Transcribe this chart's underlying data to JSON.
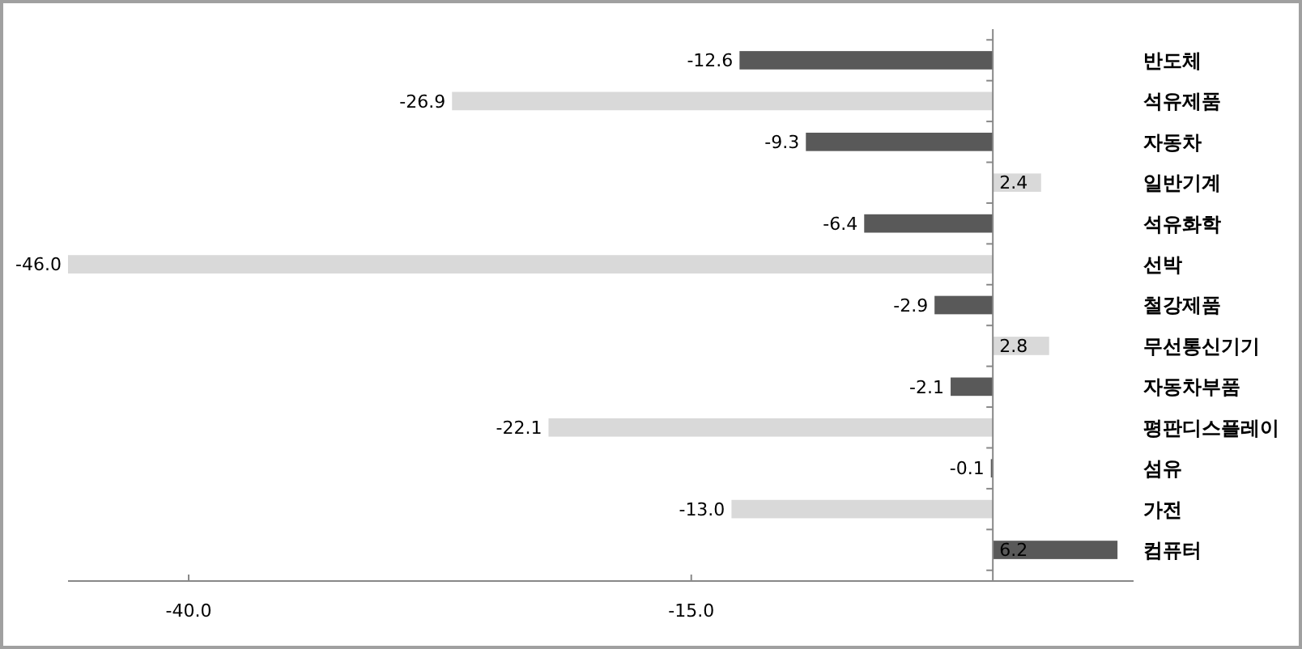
{
  "chart_data": {
    "type": "bar",
    "orientation": "horizontal",
    "categories": [
      "반도체",
      "석유제품",
      "자동차",
      "일반기계",
      "석유화학",
      "선박",
      "철강제품",
      "무선통신기기",
      "자동차부품",
      "평판디스플레이",
      "섬유",
      "가전",
      "컴퓨터"
    ],
    "values": [
      -12.6,
      -26.9,
      -9.3,
      2.4,
      -6.4,
      -46.0,
      -2.9,
      2.8,
      -2.1,
      -22.1,
      -0.1,
      -13.0,
      6.2
    ],
    "value_labels": [
      "-12.6",
      "-26.9",
      "-9.3",
      "2.4",
      "-6.4",
      "-46.0",
      "-2.9",
      "2.8",
      "-2.1",
      "-22.1",
      "-0.1",
      "-13.0",
      "6.2"
    ],
    "colors": [
      "#595959",
      "#d9d9d9",
      "#595959",
      "#d9d9d9",
      "#595959",
      "#d9d9d9",
      "#595959",
      "#d9d9d9",
      "#595959",
      "#d9d9d9",
      "#595959",
      "#d9d9d9",
      "#595959"
    ],
    "xlim": [
      -46,
      7
    ],
    "xticks": [
      {
        "value": -40,
        "label": "-40.0"
      },
      {
        "value": -15,
        "label": "-15.0"
      }
    ],
    "grid": false
  }
}
